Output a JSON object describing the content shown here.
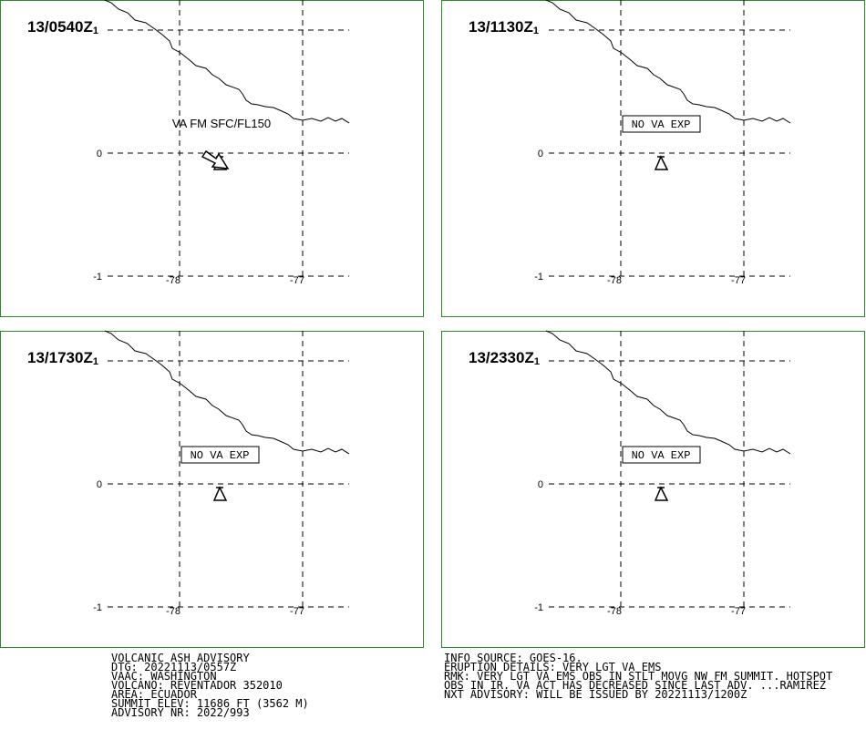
{
  "panels": [
    {
      "time": "13/0540Z",
      "sub": "1",
      "lat_labels": [
        "0",
        "-1"
      ],
      "lon_labels": [
        "-78",
        "-77"
      ],
      "annotation": {
        "text": "VA FM SFC/FL150",
        "boxed": false
      },
      "arrow": true
    },
    {
      "time": "13/1130Z",
      "sub": "1",
      "lat_labels": [
        "0",
        "-1"
      ],
      "lon_labels": [
        "-78",
        "-77"
      ],
      "annotation": {
        "text": "NO VA EXP",
        "boxed": true
      },
      "arrow": false
    },
    {
      "time": "13/1730Z",
      "sub": "1",
      "lat_labels": [
        "0",
        "-1"
      ],
      "lon_labels": [
        "-78",
        "-77"
      ],
      "annotation": {
        "text": "NO VA EXP",
        "boxed": true
      },
      "arrow": false
    },
    {
      "time": "13/2330Z",
      "sub": "1",
      "lat_labels": [
        "0",
        "-1"
      ],
      "lon_labels": [
        "-78",
        "-77"
      ],
      "annotation": {
        "text": "NO VA EXP",
        "boxed": true
      },
      "arrow": false
    }
  ],
  "footer": {
    "left": [
      "VOLCANIC ASH ADVISORY",
      "DTG: 20221113/0557Z",
      "VAAC: WASHINGTON",
      "VOLCANO: REVENTADOR 352010",
      "AREA: ECUADOR",
      "SUMMIT ELEV: 11686 FT (3562 M)",
      "ADVISORY NR: 2022/993"
    ],
    "right": [
      "INFO SOURCE: GOES-16.",
      "ERUPTION DETAILS: VERY LGT VA EMS",
      "RMK: VERY LGT VA EMS OBS IN STLT MOVG NW FM SUMMIT. HOTSPOT",
      "OBS IN IR. VA ACT HAS DECREASED SINCE LAST ADV. ...RAMIREZ",
      "NXT ADVISORY: WILL BE ISSUED BY 20221113/1200Z"
    ]
  }
}
